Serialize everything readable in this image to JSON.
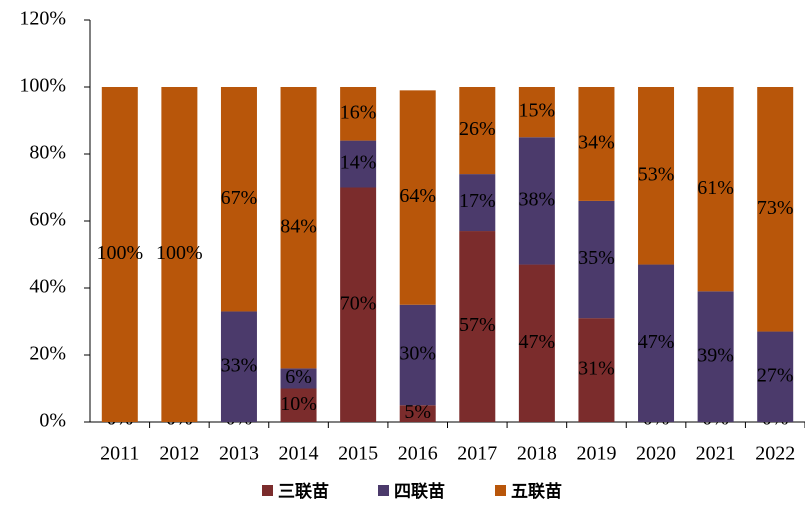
{
  "chart_data": {
    "type": "stacked_bar",
    "categories": [
      "2011",
      "2012",
      "2013",
      "2014",
      "2015",
      "2016",
      "2017",
      "2018",
      "2019",
      "2020",
      "2021",
      "2022"
    ],
    "series": [
      {
        "name": "三联苗",
        "color": "#7b2c2c",
        "values": [
          0,
          0,
          0,
          10,
          70,
          5,
          57,
          47,
          31,
          0,
          0,
          0
        ],
        "value_labels": [
          "0%",
          "0%",
          "0%",
          "10%",
          "70%",
          "5%",
          "57%",
          "47%",
          "31%",
          "0%",
          "0%",
          "0%"
        ]
      },
      {
        "name": "四联苗",
        "color": "#4b3a6b",
        "values": [
          0,
          0,
          33,
          6,
          14,
          30,
          17,
          38,
          35,
          47,
          39,
          27
        ],
        "value_labels": [
          "0%",
          "0%",
          "33%",
          "6%",
          "14%",
          "30%",
          "17%",
          "38%",
          "35%",
          "47%",
          "39%",
          "27%"
        ]
      },
      {
        "name": "五联苗",
        "color": "#b8560a",
        "values": [
          100,
          100,
          67,
          84,
          16,
          64,
          26,
          15,
          34,
          53,
          61,
          73
        ],
        "value_labels": [
          "100%",
          "100%",
          "67%",
          "84%",
          "16%",
          "64%",
          "26%",
          "15%",
          "34%",
          "53%",
          "61%",
          "73%"
        ]
      }
    ],
    "ylim": [
      0,
      120
    ],
    "yticks": [
      {
        "value": 0,
        "label": "0%"
      },
      {
        "value": 20,
        "label": "20%"
      },
      {
        "value": 40,
        "label": "40%"
      },
      {
        "value": 60,
        "label": "60%"
      },
      {
        "value": 80,
        "label": "80%"
      },
      {
        "value": 100,
        "label": "100%"
      },
      {
        "value": 120,
        "label": "120%"
      }
    ],
    "legend": "bottom"
  }
}
